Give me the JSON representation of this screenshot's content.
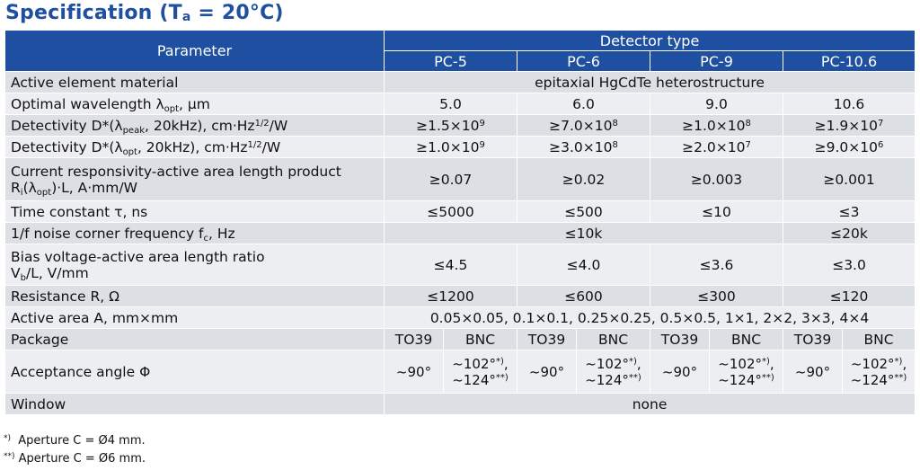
{
  "title": {
    "prefix": "Specification (T",
    "sub": "a",
    "suffix": " = 20°C)"
  },
  "header": {
    "parameter": "Parameter",
    "detector_type": "Detector type",
    "models": [
      "PC-5",
      "PC-6",
      "PC-9",
      "PC-10.6"
    ]
  },
  "rows": {
    "material": {
      "label": "Active element material",
      "value": "epitaxial HgCdTe heterostructure"
    },
    "wavelength": {
      "label_a": "Optimal wavelength λ",
      "label_sub": "opt",
      "label_b": ", μm",
      "values": [
        "5.0",
        "6.0",
        "9.0",
        "10.6"
      ]
    },
    "det_peak": {
      "label_a": "Detectivity D*(λ",
      "label_sub": "peak",
      "label_b": ", 20kHz), cm·Hz",
      "label_sup": "1/2",
      "label_c": "/W",
      "values": [
        {
          "base": "≥1.5×10",
          "exp": "9"
        },
        {
          "base": "≥7.0×10",
          "exp": "8"
        },
        {
          "base": "≥1.0×10",
          "exp": "8"
        },
        {
          "base": "≥1.9×10",
          "exp": "7"
        }
      ]
    },
    "det_opt": {
      "label_a": "Detectivity D*(λ",
      "label_sub": "opt",
      "label_b": ", 20kHz), cm·Hz",
      "label_sup": "1/2",
      "label_c": "/W",
      "values": [
        {
          "base": "≥1.0×10",
          "exp": "9"
        },
        {
          "base": "≥3.0×10",
          "exp": "8"
        },
        {
          "base": "≥2.0×10",
          "exp": "7"
        },
        {
          "base": "≥9.0×10",
          "exp": "6"
        }
      ]
    },
    "responsivity": {
      "label_line1": "Current responsivity-active area length product",
      "label_a": "R",
      "label_sub": "i",
      "label_b": "(λ",
      "label_sub2": "opt",
      "label_c": ")·L, A·mm/W",
      "values": [
        "≥0.07",
        "≥0.02",
        "≥0.003",
        "≥0.001"
      ]
    },
    "time_constant": {
      "label": "Time constant τ, ns",
      "values": [
        "≤5000",
        "≤500",
        "≤10",
        "≤3"
      ]
    },
    "noise_corner": {
      "label_a": "1/f noise corner frequency f",
      "label_sub": "c",
      "label_b": ", Hz",
      "values": [
        "≤10k",
        "≤20k"
      ]
    },
    "bias": {
      "label_line1": "Bias voltage-active area length ratio",
      "label_a": "V",
      "label_sub": "b",
      "label_b": "/L, V/mm",
      "values": [
        "≤4.5",
        "≤4.0",
        "≤3.6",
        "≤3.0"
      ]
    },
    "resistance": {
      "label": "Resistance R, Ω",
      "values": [
        "≤1200",
        "≤600",
        "≤300",
        "≤120"
      ]
    },
    "active_area": {
      "label": "Active area A, mm×mm",
      "value": "0.05×0.05, 0.1×0.1, 0.25×0.25, 0.5×0.5, 1×1, 2×2, 3×3, 4×4"
    },
    "package": {
      "label": "Package",
      "values": [
        "TO39",
        "BNC",
        "TO39",
        "BNC",
        "TO39",
        "BNC",
        "TO39",
        "BNC"
      ]
    },
    "acceptance": {
      "label": "Acceptance angle Φ",
      "to39": "~90°",
      "bnc_line1": "~102°",
      "bnc_mark1": "*)",
      "bnc_sep": ",",
      "bnc_line2": "~124°",
      "bnc_mark2": "**)"
    },
    "window": {
      "label": "Window",
      "value": "none"
    }
  },
  "notes": [
    {
      "mark": "*)",
      "text": "  Aperture C = Ø4 mm."
    },
    {
      "mark": "**)",
      "text": " Aperture C = Ø6 mm."
    }
  ],
  "colors": {
    "header_bg": "#1f4fa0",
    "row_dark": "#dcdfe4",
    "row_light": "#edeef1",
    "title": "#1f4fa0"
  }
}
